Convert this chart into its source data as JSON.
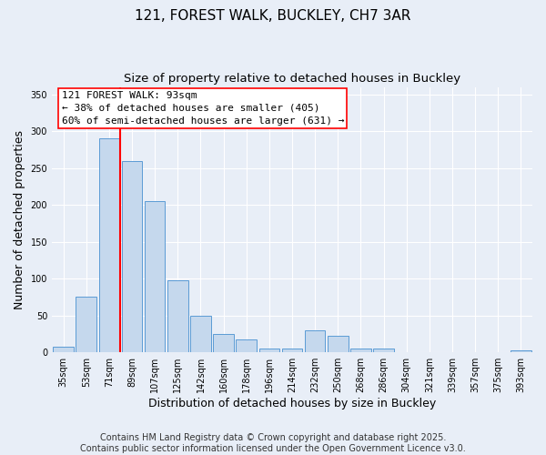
{
  "title": "121, FOREST WALK, BUCKLEY, CH7 3AR",
  "subtitle": "Size of property relative to detached houses in Buckley",
  "xlabel": "Distribution of detached houses by size in Buckley",
  "ylabel": "Number of detached properties",
  "categories": [
    "35sqm",
    "53sqm",
    "71sqm",
    "89sqm",
    "107sqm",
    "125sqm",
    "142sqm",
    "160sqm",
    "178sqm",
    "196sqm",
    "214sqm",
    "232sqm",
    "250sqm",
    "268sqm",
    "286sqm",
    "304sqm",
    "321sqm",
    "339sqm",
    "357sqm",
    "375sqm",
    "393sqm"
  ],
  "values": [
    8,
    75,
    290,
    260,
    205,
    98,
    50,
    25,
    18,
    5,
    5,
    30,
    22,
    5,
    5,
    0,
    0,
    0,
    0,
    0,
    3
  ],
  "bar_color": "#c5d8ed",
  "bar_edge_color": "#5b9bd5",
  "vline_x_index": 3,
  "vline_color": "red",
  "annotation_text": "121 FOREST WALK: 93sqm\n← 38% of detached houses are smaller (405)\n60% of semi-detached houses are larger (631) →",
  "annotation_box_color": "red",
  "ylim": [
    0,
    360
  ],
  "yticks": [
    0,
    50,
    100,
    150,
    200,
    250,
    300,
    350
  ],
  "footer_line1": "Contains HM Land Registry data © Crown copyright and database right 2025.",
  "footer_line2": "Contains public sector information licensed under the Open Government Licence v3.0.",
  "background_color": "#e8eef7",
  "title_fontsize": 11,
  "subtitle_fontsize": 9.5,
  "tick_fontsize": 7,
  "label_fontsize": 9,
  "annotation_fontsize": 8,
  "footer_fontsize": 7
}
